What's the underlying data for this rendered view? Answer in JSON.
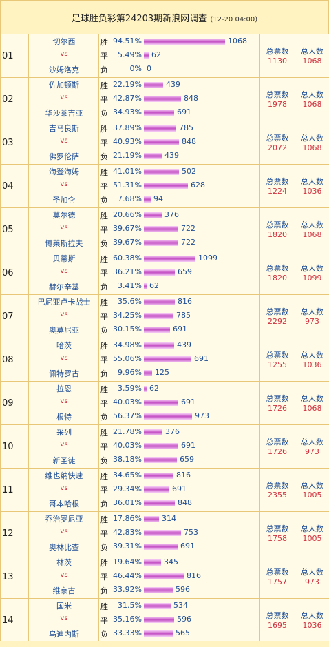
{
  "header": {
    "title": "足球胜负彩第24203期新浪网调查",
    "time": "(12-20 04:00)"
  },
  "labels": {
    "win": "胜",
    "draw": "平",
    "lose": "负",
    "vs": "vs",
    "total_votes": "总票数",
    "total_people": "总人数"
  },
  "matches": [
    {
      "no": "01",
      "home": "切尔西",
      "away": "沙姆洛克",
      "win": {
        "pct": "94.51%",
        "count": "1068"
      },
      "draw": {
        "pct": "5.49%",
        "count": "62"
      },
      "lose": {
        "pct": "0%",
        "count": "0"
      },
      "votes": "1130",
      "people": "1068"
    },
    {
      "no": "02",
      "home": "佐加顿斯",
      "away": "华沙莱吉亚",
      "win": {
        "pct": "22.19%",
        "count": "439"
      },
      "draw": {
        "pct": "42.87%",
        "count": "848"
      },
      "lose": {
        "pct": "34.93%",
        "count": "691"
      },
      "votes": "1978",
      "people": "1068"
    },
    {
      "no": "03",
      "home": "吉马良斯",
      "away": "佛罗伦萨",
      "win": {
        "pct": "37.89%",
        "count": "785"
      },
      "draw": {
        "pct": "40.93%",
        "count": "848"
      },
      "lose": {
        "pct": "21.19%",
        "count": "439"
      },
      "votes": "2072",
      "people": "1068"
    },
    {
      "no": "04",
      "home": "海登海姆",
      "away": "圣加仑",
      "win": {
        "pct": "41.01%",
        "count": "502"
      },
      "draw": {
        "pct": "51.31%",
        "count": "628"
      },
      "lose": {
        "pct": "7.68%",
        "count": "94"
      },
      "votes": "1224",
      "people": "1036"
    },
    {
      "no": "05",
      "home": "莫尔德",
      "away": "博莱斯拉夫",
      "win": {
        "pct": "20.66%",
        "count": "376"
      },
      "draw": {
        "pct": "39.67%",
        "count": "722"
      },
      "lose": {
        "pct": "39.67%",
        "count": "722"
      },
      "votes": "1820",
      "people": "1068"
    },
    {
      "no": "06",
      "home": "贝蒂斯",
      "away": "赫尔辛基",
      "win": {
        "pct": "60.38%",
        "count": "1099"
      },
      "draw": {
        "pct": "36.21%",
        "count": "659"
      },
      "lose": {
        "pct": "3.41%",
        "count": "62"
      },
      "votes": "1820",
      "people": "1099"
    },
    {
      "no": "07",
      "home": "巴尼亚卢卡战士",
      "away": "奥莫尼亚",
      "win": {
        "pct": "35.6%",
        "count": "816"
      },
      "draw": {
        "pct": "34.25%",
        "count": "785"
      },
      "lose": {
        "pct": "30.15%",
        "count": "691"
      },
      "votes": "2292",
      "people": "973"
    },
    {
      "no": "08",
      "home": "哈茨",
      "away": "佩特罗古",
      "win": {
        "pct": "34.98%",
        "count": "439"
      },
      "draw": {
        "pct": "55.06%",
        "count": "691"
      },
      "lose": {
        "pct": "9.96%",
        "count": "125"
      },
      "votes": "1255",
      "people": "1036"
    },
    {
      "no": "09",
      "home": "拉恩",
      "away": "根特",
      "win": {
        "pct": "3.59%",
        "count": "62"
      },
      "draw": {
        "pct": "40.03%",
        "count": "691"
      },
      "lose": {
        "pct": "56.37%",
        "count": "973"
      },
      "votes": "1726",
      "people": "1068"
    },
    {
      "no": "10",
      "home": "采列",
      "away": "新圣徒",
      "win": {
        "pct": "21.78%",
        "count": "376"
      },
      "draw": {
        "pct": "40.03%",
        "count": "691"
      },
      "lose": {
        "pct": "38.18%",
        "count": "659"
      },
      "votes": "1726",
      "people": "973"
    },
    {
      "no": "11",
      "home": "维也纳快速",
      "away": "哥本哈根",
      "win": {
        "pct": "34.65%",
        "count": "816"
      },
      "draw": {
        "pct": "29.34%",
        "count": "691"
      },
      "lose": {
        "pct": "36.01%",
        "count": "848"
      },
      "votes": "2355",
      "people": "1005"
    },
    {
      "no": "12",
      "home": "乔治罗尼亚",
      "away": "奥林比查",
      "win": {
        "pct": "17.86%",
        "count": "314"
      },
      "draw": {
        "pct": "42.83%",
        "count": "753"
      },
      "lose": {
        "pct": "39.31%",
        "count": "691"
      },
      "votes": "1758",
      "people": "1005"
    },
    {
      "no": "13",
      "home": "林茨",
      "away": "维京古",
      "win": {
        "pct": "19.64%",
        "count": "345"
      },
      "draw": {
        "pct": "46.44%",
        "count": "816"
      },
      "lose": {
        "pct": "33.92%",
        "count": "596"
      },
      "votes": "1757",
      "people": "973"
    },
    {
      "no": "14",
      "home": "国米",
      "away": "乌迪内斯",
      "win": {
        "pct": "31.5%",
        "count": "534"
      },
      "draw": {
        "pct": "35.16%",
        "count": "596"
      },
      "lose": {
        "pct": "33.33%",
        "count": "565"
      },
      "votes": "1695",
      "people": "1036"
    }
  ]
}
